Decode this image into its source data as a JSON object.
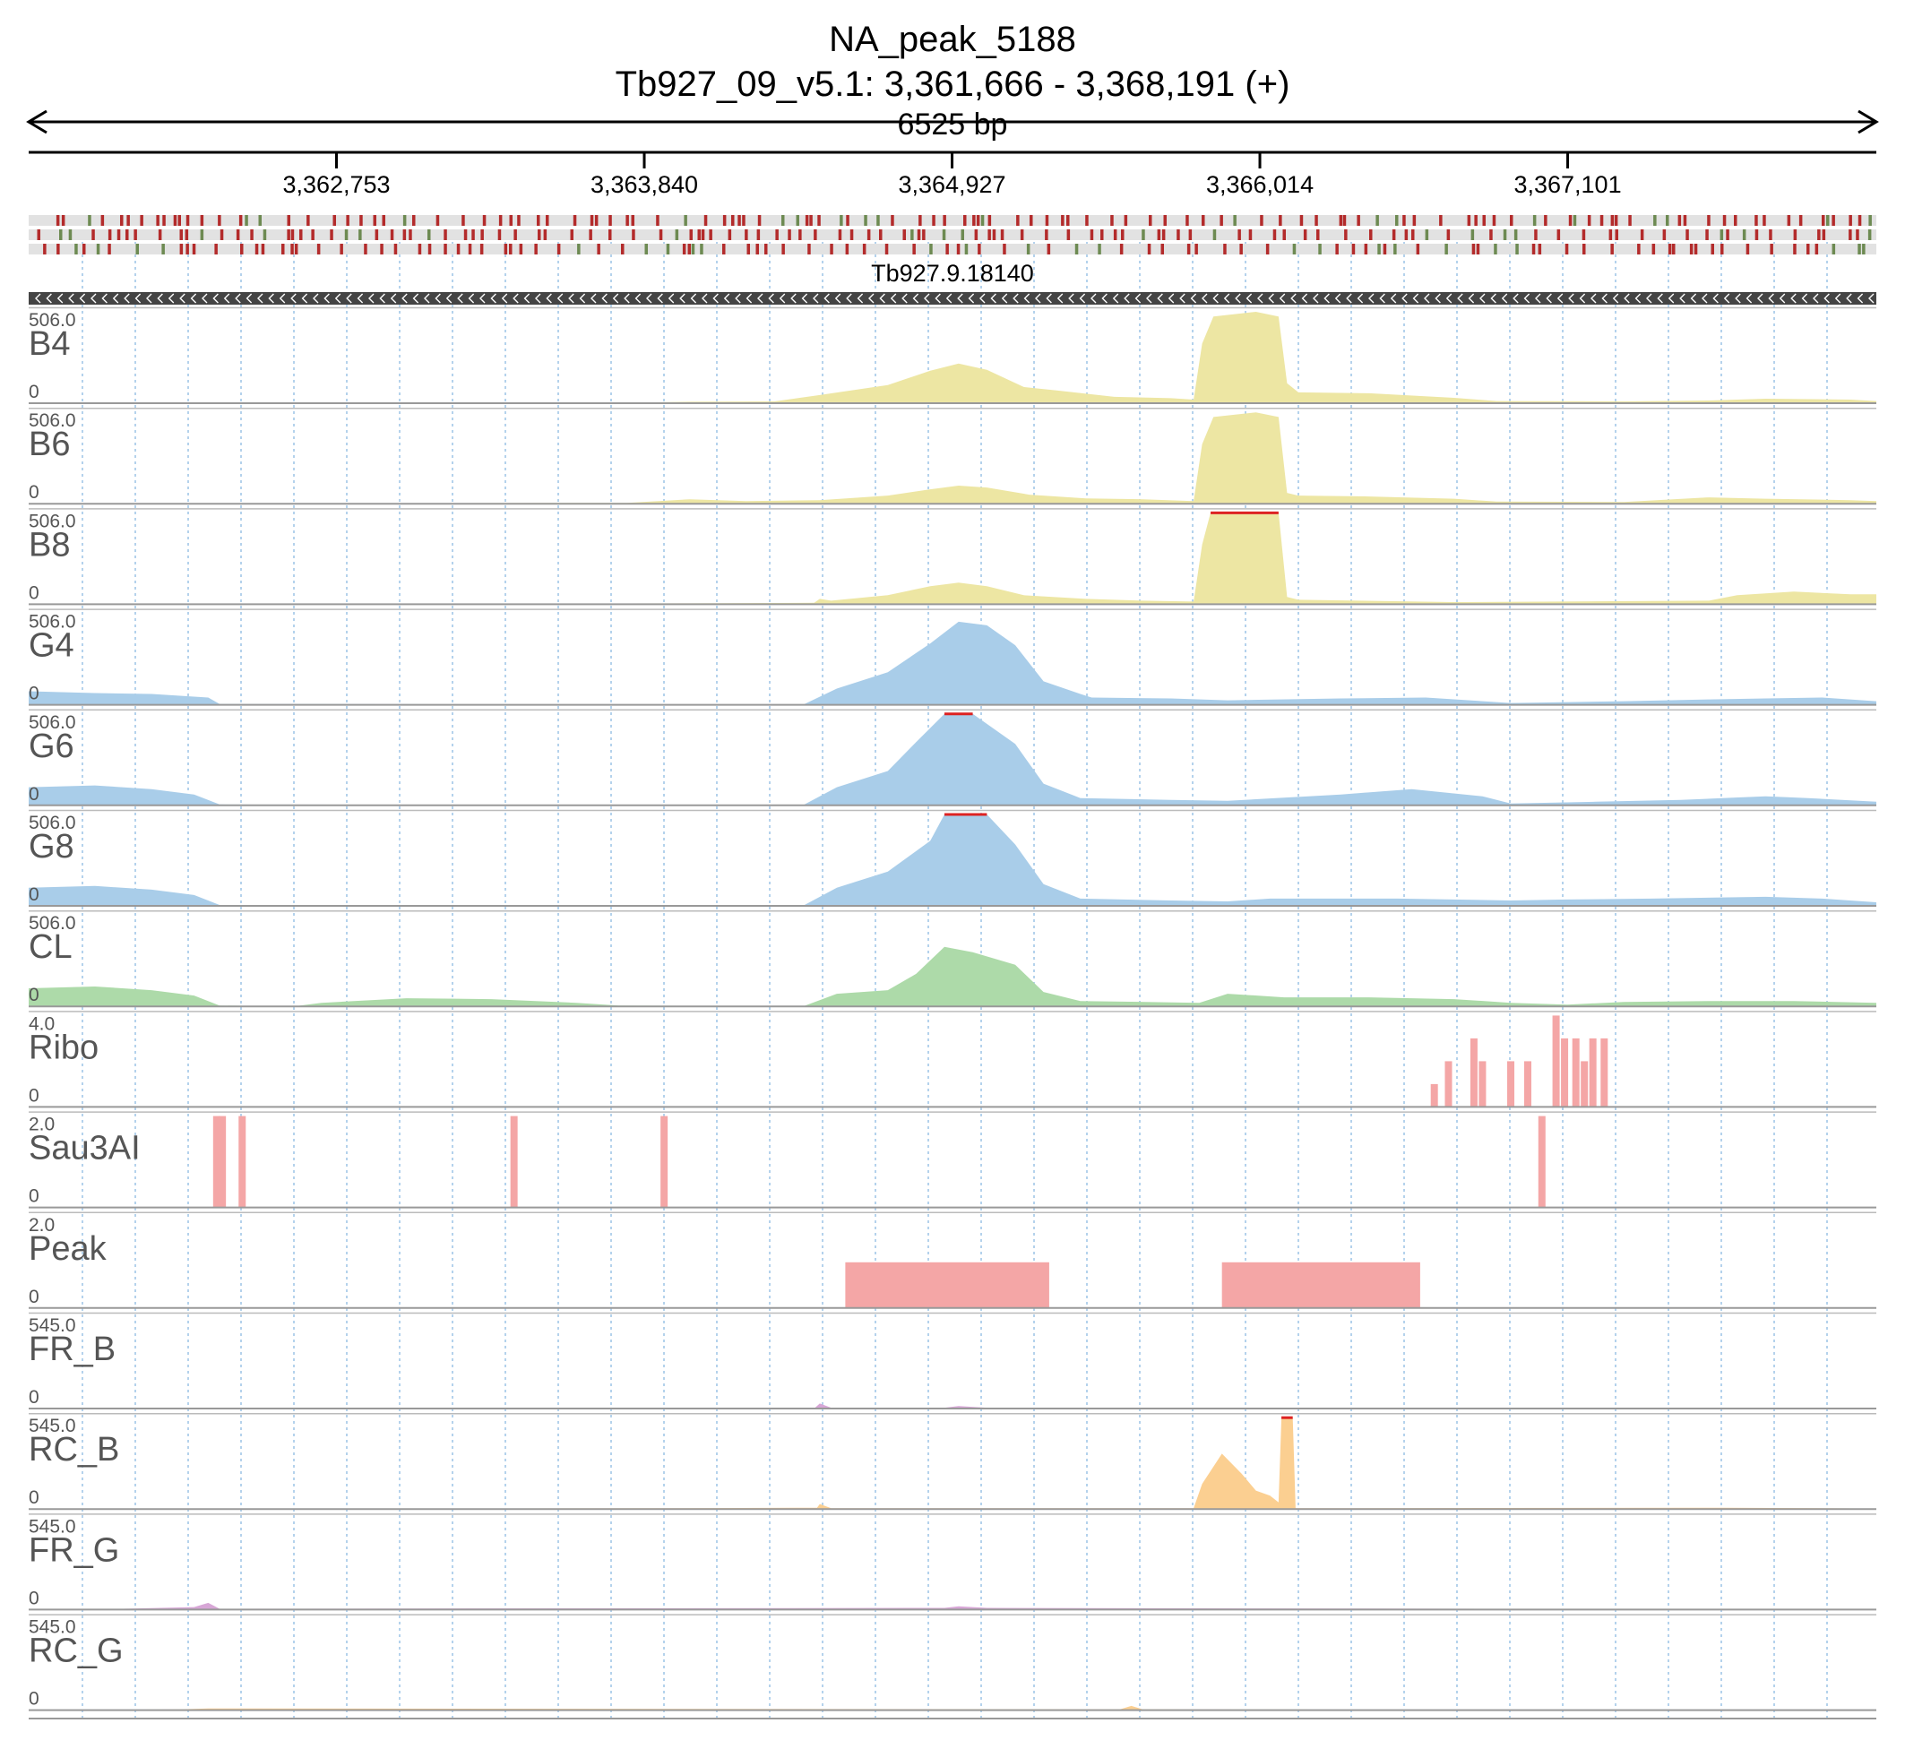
{
  "chart_data": {
    "type": "area",
    "title": "NA_peak_5188",
    "subtitle": "Tb927_09_v5.1: 3,361,666 - 3,368,191 (+)",
    "span_label": "6525 bp",
    "x_range": [
      3361666,
      3368191
    ],
    "x_ticks": [
      {
        "value": 3362753,
        "label": "3,362,753"
      },
      {
        "value": 3363840,
        "label": "3,363,840"
      },
      {
        "value": 3364927,
        "label": "3,364,927"
      },
      {
        "value": 3366014,
        "label": "3,366,014"
      },
      {
        "value": 3367101,
        "label": "3,367,101"
      }
    ],
    "gene": {
      "name": "Tb927.9.18140",
      "strand": "-",
      "start": 3361666,
      "end": 3368191
    },
    "tracks": [
      {
        "name": "B4",
        "max_label": "506.0",
        "min_label": "0",
        "ymax": 506,
        "color": "#ede6a3",
        "points": [
          [
            3361666,
            0
          ],
          [
            3363800,
            3
          ],
          [
            3364000,
            8
          ],
          [
            3364300,
            10
          ],
          [
            3364460,
            45
          ],
          [
            3364700,
            100
          ],
          [
            3364850,
            180
          ],
          [
            3364950,
            220
          ],
          [
            3365050,
            185
          ],
          [
            3365180,
            90
          ],
          [
            3365300,
            70
          ],
          [
            3365500,
            35
          ],
          [
            3365700,
            28
          ],
          [
            3365780,
            20
          ],
          [
            3365810,
            330
          ],
          [
            3365850,
            480
          ],
          [
            3366000,
            506
          ],
          [
            3366080,
            480
          ],
          [
            3366110,
            110
          ],
          [
            3366150,
            60
          ],
          [
            3366400,
            55
          ],
          [
            3366700,
            30
          ],
          [
            3366850,
            12
          ],
          [
            3367300,
            10
          ],
          [
            3367600,
            15
          ],
          [
            3367800,
            25
          ],
          [
            3368100,
            20
          ],
          [
            3368191,
            12
          ]
        ]
      },
      {
        "name": "B6",
        "max_label": "506.0",
        "min_label": "0",
        "ymax": 506,
        "color": "#ede6a3",
        "points": [
          [
            3361666,
            0
          ],
          [
            3363780,
            5
          ],
          [
            3364000,
            25
          ],
          [
            3364200,
            15
          ],
          [
            3364460,
            20
          ],
          [
            3364700,
            45
          ],
          [
            3364850,
            80
          ],
          [
            3364950,
            100
          ],
          [
            3365050,
            90
          ],
          [
            3365200,
            50
          ],
          [
            3365400,
            30
          ],
          [
            3365600,
            25
          ],
          [
            3365780,
            15
          ],
          [
            3365810,
            330
          ],
          [
            3365850,
            480
          ],
          [
            3366000,
            506
          ],
          [
            3366080,
            480
          ],
          [
            3366110,
            60
          ],
          [
            3366150,
            45
          ],
          [
            3366400,
            40
          ],
          [
            3366700,
            28
          ],
          [
            3366850,
            12
          ],
          [
            3367300,
            10
          ],
          [
            3367600,
            35
          ],
          [
            3367800,
            28
          ],
          [
            3368100,
            20
          ],
          [
            3368191,
            15
          ]
        ]
      },
      {
        "name": "B8",
        "max_label": "506.0",
        "min_label": "0",
        "ymax": 506,
        "color": "#ede6a3",
        "points": [
          [
            3361666,
            0
          ],
          [
            3364000,
            5
          ],
          [
            3364440,
            8
          ],
          [
            3364460,
            30
          ],
          [
            3364500,
            20
          ],
          [
            3364700,
            50
          ],
          [
            3364850,
            100
          ],
          [
            3364950,
            120
          ],
          [
            3365050,
            100
          ],
          [
            3365180,
            50
          ],
          [
            3365400,
            30
          ],
          [
            3365600,
            20
          ],
          [
            3365780,
            15
          ],
          [
            3365810,
            330
          ],
          [
            3365840,
            506
          ],
          [
            3366080,
            506
          ],
          [
            3366110,
            40
          ],
          [
            3366150,
            25
          ],
          [
            3366700,
            12
          ],
          [
            3367600,
            20
          ],
          [
            3367700,
            50
          ],
          [
            3367900,
            70
          ],
          [
            3368100,
            55
          ],
          [
            3368191,
            55
          ]
        ]
      },
      {
        "name": "G4",
        "max_label": "506.0",
        "min_label": "0",
        "ymax": 506,
        "color": "#a9cde9",
        "points": [
          [
            3361666,
            75
          ],
          [
            3361900,
            65
          ],
          [
            3362100,
            60
          ],
          [
            3362300,
            40
          ],
          [
            3362340,
            5
          ],
          [
            3364400,
            0
          ],
          [
            3364520,
            90
          ],
          [
            3364700,
            180
          ],
          [
            3364850,
            340
          ],
          [
            3364950,
            460
          ],
          [
            3365050,
            440
          ],
          [
            3365150,
            330
          ],
          [
            3365250,
            130
          ],
          [
            3365380,
            60
          ],
          [
            3365420,
            40
          ],
          [
            3365700,
            35
          ],
          [
            3365900,
            25
          ],
          [
            3366300,
            35
          ],
          [
            3366600,
            40
          ],
          [
            3366900,
            10
          ],
          [
            3367100,
            15
          ],
          [
            3367300,
            20
          ],
          [
            3367600,
            30
          ],
          [
            3367800,
            35
          ],
          [
            3368000,
            40
          ],
          [
            3368191,
            20
          ]
        ]
      },
      {
        "name": "G6",
        "max_label": "506.0",
        "min_label": "0",
        "ymax": 506,
        "color": "#a9cde9",
        "points": [
          [
            3361666,
            100
          ],
          [
            3361900,
            110
          ],
          [
            3362100,
            90
          ],
          [
            3362250,
            60
          ],
          [
            3362340,
            5
          ],
          [
            3364400,
            0
          ],
          [
            3364520,
            100
          ],
          [
            3364700,
            190
          ],
          [
            3364800,
            350
          ],
          [
            3364900,
            506
          ],
          [
            3365000,
            506
          ],
          [
            3365150,
            340
          ],
          [
            3365250,
            120
          ],
          [
            3365380,
            40
          ],
          [
            3365700,
            30
          ],
          [
            3365900,
            25
          ],
          [
            3366300,
            60
          ],
          [
            3366550,
            90
          ],
          [
            3366800,
            50
          ],
          [
            3366900,
            10
          ],
          [
            3367200,
            20
          ],
          [
            3367500,
            30
          ],
          [
            3367800,
            50
          ],
          [
            3367950,
            40
          ],
          [
            3368191,
            20
          ]
        ]
      },
      {
        "name": "G8",
        "max_label": "506.0",
        "min_label": "0",
        "ymax": 506,
        "color": "#a9cde9",
        "points": [
          [
            3361666,
            100
          ],
          [
            3361900,
            110
          ],
          [
            3362100,
            90
          ],
          [
            3362250,
            60
          ],
          [
            3362340,
            5
          ],
          [
            3364400,
            0
          ],
          [
            3364520,
            100
          ],
          [
            3364700,
            190
          ],
          [
            3364850,
            360
          ],
          [
            3364900,
            506
          ],
          [
            3365050,
            506
          ],
          [
            3365150,
            340
          ],
          [
            3365250,
            120
          ],
          [
            3365380,
            40
          ],
          [
            3365700,
            30
          ],
          [
            3365900,
            25
          ],
          [
            3366050,
            40
          ],
          [
            3366500,
            40
          ],
          [
            3366900,
            30
          ],
          [
            3367100,
            35
          ],
          [
            3367400,
            40
          ],
          [
            3367800,
            50
          ],
          [
            3368000,
            40
          ],
          [
            3368191,
            20
          ]
        ]
      },
      {
        "name": "CL",
        "max_label": "506.0",
        "min_label": "0",
        "ymax": 506,
        "color": "#addaa9",
        "points": [
          [
            3361666,
            100
          ],
          [
            3361900,
            110
          ],
          [
            3362100,
            90
          ],
          [
            3362250,
            60
          ],
          [
            3362340,
            5
          ],
          [
            3362600,
            0
          ],
          [
            3362700,
            20
          ],
          [
            3363000,
            45
          ],
          [
            3363300,
            40
          ],
          [
            3363600,
            20
          ],
          [
            3363750,
            5
          ],
          [
            3364400,
            0
          ],
          [
            3364520,
            70
          ],
          [
            3364700,
            90
          ],
          [
            3364800,
            180
          ],
          [
            3364900,
            330
          ],
          [
            3365000,
            300
          ],
          [
            3365150,
            230
          ],
          [
            3365250,
            80
          ],
          [
            3365380,
            30
          ],
          [
            3365800,
            20
          ],
          [
            3365900,
            70
          ],
          [
            3366100,
            50
          ],
          [
            3366400,
            50
          ],
          [
            3366700,
            40
          ],
          [
            3366900,
            20
          ],
          [
            3367100,
            10
          ],
          [
            3367300,
            25
          ],
          [
            3367600,
            30
          ],
          [
            3367900,
            30
          ],
          [
            3368191,
            20
          ]
        ]
      },
      {
        "name": "Ribo",
        "max_label": "4.0",
        "min_label": "0",
        "ymax": 4,
        "color": "#f4a6a6",
        "bars": [
          [
            3366630,
            1
          ],
          [
            3366680,
            2
          ],
          [
            3366770,
            3
          ],
          [
            3366800,
            2
          ],
          [
            3366900,
            2
          ],
          [
            3366960,
            2
          ],
          [
            3367060,
            4
          ],
          [
            3367090,
            3
          ],
          [
            3367130,
            3
          ],
          [
            3367160,
            2
          ],
          [
            3367190,
            3
          ],
          [
            3367230,
            3
          ]
        ]
      },
      {
        "name": "Sau3AI",
        "max_label": "2.0",
        "min_label": "0",
        "ymax": 2,
        "color": "#f4a6a6",
        "bars": [
          [
            3362330,
            2
          ],
          [
            3362350,
            2
          ],
          [
            3362420,
            2
          ],
          [
            3363380,
            2
          ],
          [
            3363910,
            2
          ],
          [
            3367010,
            2
          ]
        ]
      },
      {
        "name": "Peak",
        "max_label": "2.0",
        "min_label": "0",
        "ymax": 2,
        "color": "#f4a6a6",
        "ranges": [
          [
            3364550,
            3365270,
            1
          ],
          [
            3365880,
            3366580,
            1
          ]
        ]
      },
      {
        "name": "FR_B",
        "max_label": "545.0",
        "min_label": "0",
        "ymax": 545,
        "color": "#d7a6d6",
        "points": [
          [
            3361666,
            0
          ],
          [
            3364440,
            0
          ],
          [
            3364460,
            30
          ],
          [
            3364500,
            5
          ],
          [
            3364900,
            5
          ],
          [
            3364950,
            15
          ],
          [
            3365050,
            5
          ],
          [
            3368191,
            0
          ]
        ]
      },
      {
        "name": "RC_B",
        "max_label": "545.0",
        "min_label": "0",
        "ymax": 545,
        "color": "#fbcf91",
        "points": [
          [
            3361666,
            0
          ],
          [
            3363900,
            5
          ],
          [
            3364450,
            8
          ],
          [
            3364460,
            30
          ],
          [
            3364500,
            5
          ],
          [
            3365780,
            5
          ],
          [
            3365810,
            150
          ],
          [
            3365880,
            330
          ],
          [
            3365950,
            210
          ],
          [
            3366000,
            110
          ],
          [
            3366050,
            80
          ],
          [
            3366080,
            40
          ],
          [
            3366090,
            545
          ],
          [
            3366130,
            545
          ],
          [
            3366140,
            5
          ],
          [
            3367650,
            8
          ],
          [
            3368191,
            3
          ]
        ]
      },
      {
        "name": "FR_G",
        "max_label": "545.0",
        "min_label": "0",
        "ymax": 545,
        "color": "#d7a6d6",
        "points": [
          [
            3361666,
            0
          ],
          [
            3362000,
            5
          ],
          [
            3362250,
            15
          ],
          [
            3362300,
            40
          ],
          [
            3362340,
            5
          ],
          [
            3364900,
            10
          ],
          [
            3364950,
            20
          ],
          [
            3365050,
            10
          ],
          [
            3368191,
            0
          ]
        ]
      },
      {
        "name": "RC_G",
        "max_label": "545.0",
        "min_label": "0",
        "ymax": 545,
        "color": "#fbcf91",
        "points": [
          [
            3361666,
            0
          ],
          [
            3362200,
            5
          ],
          [
            3362300,
            10
          ],
          [
            3365520,
            5
          ],
          [
            3365560,
            25
          ],
          [
            3365600,
            5
          ],
          [
            3368191,
            0
          ]
        ]
      }
    ]
  }
}
